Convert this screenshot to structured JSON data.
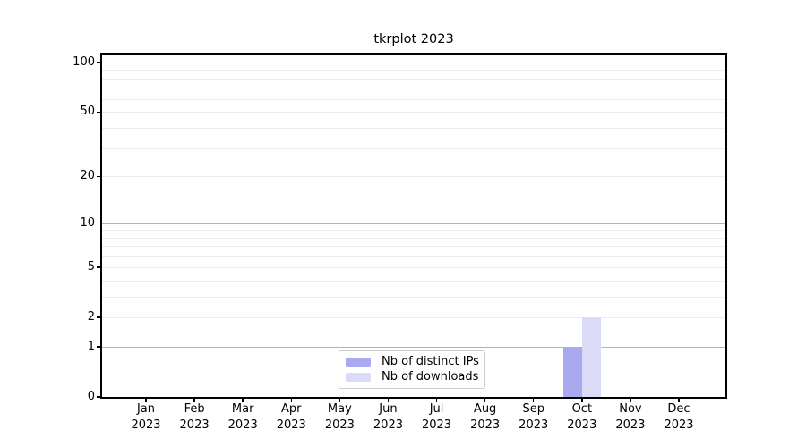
{
  "figure": {
    "title": "tkrplot 2023"
  },
  "chart_data": {
    "type": "bar",
    "title": "tkrplot 2023",
    "xlabel": "",
    "ylabel": "",
    "year": "2023",
    "categories": [
      "Jan",
      "Feb",
      "Mar",
      "Apr",
      "May",
      "Jun",
      "Jul",
      "Aug",
      "Sep",
      "Oct",
      "Nov",
      "Dec"
    ],
    "series": [
      {
        "name": "Nb of distinct IPs",
        "color": "#a9a9f0",
        "values": [
          0,
          0,
          0,
          0,
          0,
          0,
          0,
          0,
          0,
          1,
          0,
          0
        ]
      },
      {
        "name": "Nb of downloads",
        "color": "#dbdbf8",
        "values": [
          0,
          0,
          0,
          0,
          0,
          0,
          0,
          0,
          0,
          2,
          0,
          0
        ]
      }
    ],
    "yscale": "log1p",
    "ylim": [
      0,
      100
    ],
    "y_ticks": [
      0,
      1,
      2,
      5,
      10,
      20,
      50,
      100
    ],
    "grid_major": [
      1,
      10,
      100
    ],
    "grid_minor": [
      2,
      3,
      4,
      5,
      6,
      7,
      8,
      9,
      20,
      30,
      40,
      50,
      60,
      70,
      80,
      90
    ],
    "grid": "on",
    "legend_position": "bottom-center",
    "colors": {
      "grid_minor": "#ececec",
      "grid_major": "#b3b3b3",
      "spine": "#000000",
      "legend_border": "#cccccc"
    }
  }
}
